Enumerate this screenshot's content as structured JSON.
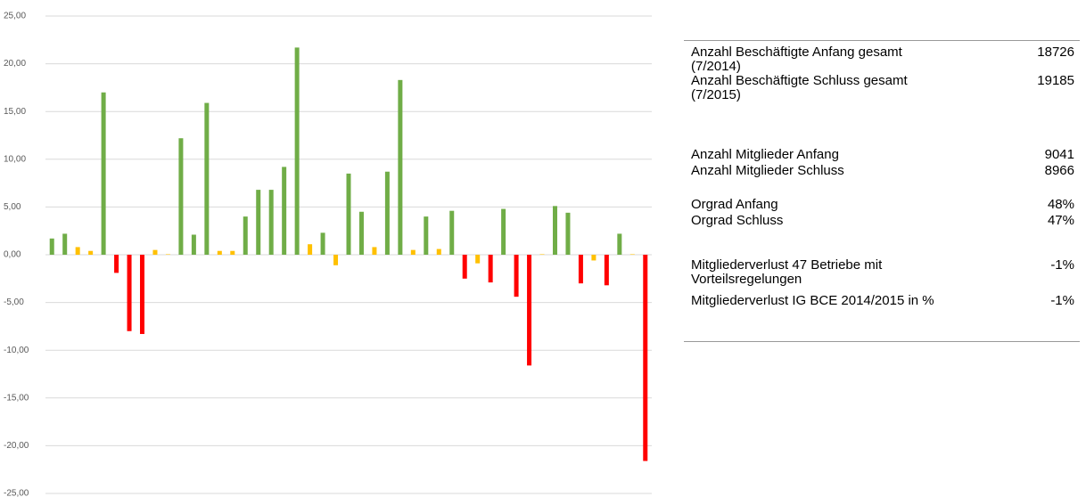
{
  "chart_data": {
    "type": "bar",
    "values": [
      1.7,
      2.2,
      0.8,
      0.4,
      17.0,
      -1.9,
      -8.0,
      -8.3,
      0.5,
      0.05,
      12.2,
      2.1,
      15.9,
      0.4,
      0.4,
      4.0,
      6.8,
      6.8,
      9.2,
      21.7,
      1.1,
      2.3,
      -1.1,
      8.5,
      4.5,
      0.8,
      8.7,
      18.3,
      0.5,
      4.0,
      0.6,
      4.6,
      -2.5,
      -0.9,
      -2.9,
      4.8,
      -4.4,
      -11.6,
      0.05,
      5.1,
      4.4,
      -3.0,
      -0.6,
      -3.2,
      2.2,
      0.05,
      -21.6
    ],
    "colors": [
      "#70ad47",
      "#70ad47",
      "#ffc000",
      "#ffc000",
      "#70ad47",
      "#ff0000",
      "#ff0000",
      "#ff0000",
      "#ffc000",
      "#ffc000",
      "#70ad47",
      "#70ad47",
      "#70ad47",
      "#ffc000",
      "#ffc000",
      "#70ad47",
      "#70ad47",
      "#70ad47",
      "#70ad47",
      "#70ad47",
      "#ffc000",
      "#70ad47",
      "#ffc000",
      "#70ad47",
      "#70ad47",
      "#ffc000",
      "#70ad47",
      "#70ad47",
      "#ffc000",
      "#70ad47",
      "#ffc000",
      "#70ad47",
      "#ff0000",
      "#ffc000",
      "#ff0000",
      "#70ad47",
      "#ff0000",
      "#ff0000",
      "#ffc000",
      "#70ad47",
      "#70ad47",
      "#ff0000",
      "#ffc000",
      "#ff0000",
      "#70ad47",
      "#ffc000",
      "#ff0000"
    ],
    "ylim": [
      -25,
      25
    ],
    "yticks": [
      {
        "value": 25,
        "label": "25,00"
      },
      {
        "value": 20,
        "label": "20,00"
      },
      {
        "value": 15,
        "label": "15,00"
      },
      {
        "value": 10,
        "label": "10,00"
      },
      {
        "value": 5,
        "label": "5,00"
      },
      {
        "value": 0,
        "label": "0,00"
      },
      {
        "value": -5,
        "label": "-5,00"
      },
      {
        "value": -10,
        "label": "-10,00"
      },
      {
        "value": -15,
        "label": "-15,00"
      },
      {
        "value": -20,
        "label": "-20,00"
      },
      {
        "value": -25,
        "label": "-25,00"
      }
    ],
    "grid": true
  },
  "table": {
    "rows": [
      {
        "label": "Anzahl Beschäftigte Anfang gesamt (7/2014)",
        "value": "18726"
      },
      {
        "label": "Anzahl Beschäftigte Schluss gesamt (7/2015)",
        "value": "19185"
      },
      {
        "label": "Anzahl Mitglieder Anfang",
        "value": "9041"
      },
      {
        "label": "Anzahl Mitglieder Schluss",
        "value": "8966"
      },
      {
        "label": "Orgrad Anfang",
        "value": "48%"
      },
      {
        "label": "Orgrad Schluss",
        "value": "47%"
      },
      {
        "label": "Mitgliederverlust 47 Betriebe mit Vorteilsregelungen",
        "value": "-1%"
      },
      {
        "label": "Mitgliederverlust IG BCE 2014/2015 in %",
        "value": "-1%"
      }
    ]
  }
}
